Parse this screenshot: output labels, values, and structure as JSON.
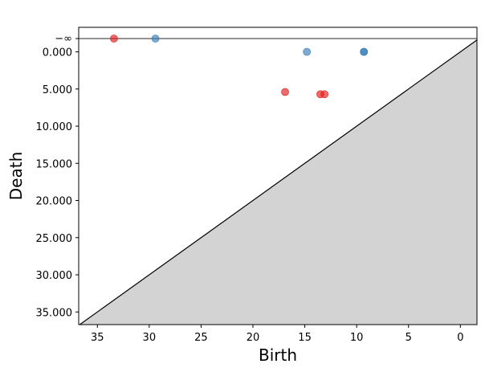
{
  "chart_data": {
    "type": "scatter",
    "title": "",
    "xlabel": "Birth",
    "ylabel": "Death",
    "x_inverted": true,
    "y_inverted": true,
    "xlim": [
      36.8,
      -1.6
    ],
    "ylim": [
      36.7,
      -3.3
    ],
    "x_ticks": [
      35,
      30,
      25,
      20,
      15,
      10,
      5,
      0
    ],
    "x_tick_labels": [
      "35",
      "30",
      "25",
      "20",
      "15",
      "10",
      "5",
      "0"
    ],
    "y_ticks": [
      0,
      5,
      10,
      15,
      20,
      25,
      30,
      35
    ],
    "y_tick_labels": [
      "0.000",
      "5.000",
      "10.000",
      "15.000",
      "20.000",
      "25.000",
      "30.000",
      "35.000"
    ],
    "infinity_line": {
      "label": "−∞",
      "value": -3.3
    },
    "diagonal_fill_color": "#d3d3d3",
    "grid": false,
    "legend": "none",
    "series": [
      {
        "color": "#e41a1c",
        "points": [
          {
            "x": 33.4,
            "y": "-inf"
          },
          {
            "x": 16.9,
            "y": 5.4
          },
          {
            "x": 13.5,
            "y": 5.7
          },
          {
            "x": 13.1,
            "y": 5.7
          }
        ]
      },
      {
        "color": "#377eb8",
        "points": [
          {
            "x": 29.4,
            "y": "-inf"
          },
          {
            "x": 14.8,
            "y": 0.0
          },
          {
            "x": 9.3,
            "y": 0.0
          },
          {
            "x": 9.3,
            "y": 0.0
          }
        ]
      }
    ]
  }
}
